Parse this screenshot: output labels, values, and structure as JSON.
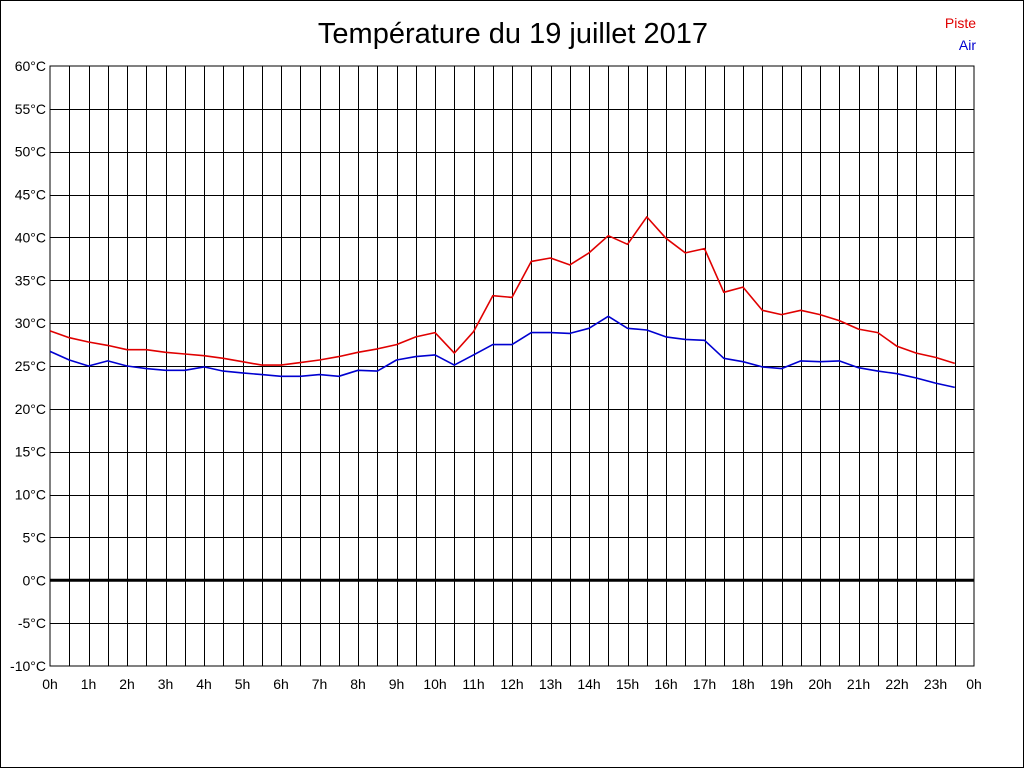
{
  "chart_data": {
    "type": "line",
    "title": "Température du 19 juillet 2017",
    "xlabel": "",
    "ylabel": "",
    "ylim": [
      -10,
      60
    ],
    "y_ticks": [
      60,
      55,
      50,
      45,
      40,
      35,
      30,
      25,
      20,
      15,
      10,
      5,
      0,
      -5,
      -10
    ],
    "y_tick_labels": [
      "60°C",
      "55°C",
      "50°C",
      "45°C",
      "40°C",
      "35°C",
      "30°C",
      "25°C",
      "20°C",
      "15°C",
      "10°C",
      "5°C",
      "0°C",
      "-5°C",
      "-10°C"
    ],
    "x_tick_labels": [
      "0h",
      "1h",
      "2h",
      "3h",
      "4h",
      "5h",
      "6h",
      "7h",
      "8h",
      "9h",
      "10h",
      "11h",
      "12h",
      "13h",
      "14h",
      "15h",
      "16h",
      "17h",
      "18h",
      "19h",
      "20h",
      "21h",
      "22h",
      "23h",
      "0h"
    ],
    "grid": true,
    "legend_position": "top-right",
    "x": [
      0,
      0.5,
      1,
      1.5,
      2,
      2.5,
      3,
      3.5,
      4,
      4.5,
      5,
      5.5,
      6,
      6.5,
      7,
      7.5,
      8,
      8.5,
      9,
      9.5,
      10,
      10.5,
      11,
      11.5,
      12,
      12.5,
      13,
      13.5,
      14,
      14.5,
      15,
      15.5,
      16,
      16.5,
      17,
      17.5,
      18,
      18.5,
      19,
      19.5,
      20,
      20.5,
      21,
      21.5,
      22,
      22.5,
      23,
      23.5
    ],
    "series": [
      {
        "name": "Piste",
        "color": "#e00000",
        "values": [
          29.1,
          28.3,
          27.8,
          27.4,
          26.9,
          26.9,
          26.6,
          26.4,
          26.2,
          25.9,
          25.5,
          25.1,
          25.1,
          25.4,
          25.7,
          26.1,
          26.6,
          27.0,
          27.5,
          28.4,
          28.9,
          26.5,
          29.0,
          33.2,
          33.0,
          37.2,
          37.6,
          36.8,
          38.2,
          40.2,
          39.2,
          42.4,
          39.9,
          38.2,
          38.7,
          33.6,
          34.2,
          31.5,
          31.0,
          31.5,
          31.0,
          30.3,
          29.3,
          28.9,
          27.3,
          26.5,
          26.0,
          25.3
        ]
      },
      {
        "name": "Air",
        "color": "#0000d0",
        "values": [
          26.7,
          25.7,
          25.0,
          25.6,
          25.0,
          24.7,
          24.5,
          24.5,
          24.9,
          24.4,
          24.2,
          24.0,
          23.8,
          23.8,
          24.0,
          23.8,
          24.5,
          24.4,
          25.7,
          26.1,
          26.3,
          25.1,
          26.3,
          27.5,
          27.5,
          28.9,
          28.9,
          28.8,
          29.4,
          30.8,
          29.4,
          29.2,
          28.4,
          28.1,
          28.0,
          25.9,
          25.5,
          24.9,
          24.7,
          25.6,
          25.5,
          25.6,
          24.8,
          24.4,
          24.1,
          23.6,
          23.0,
          22.5
        ]
      }
    ]
  }
}
